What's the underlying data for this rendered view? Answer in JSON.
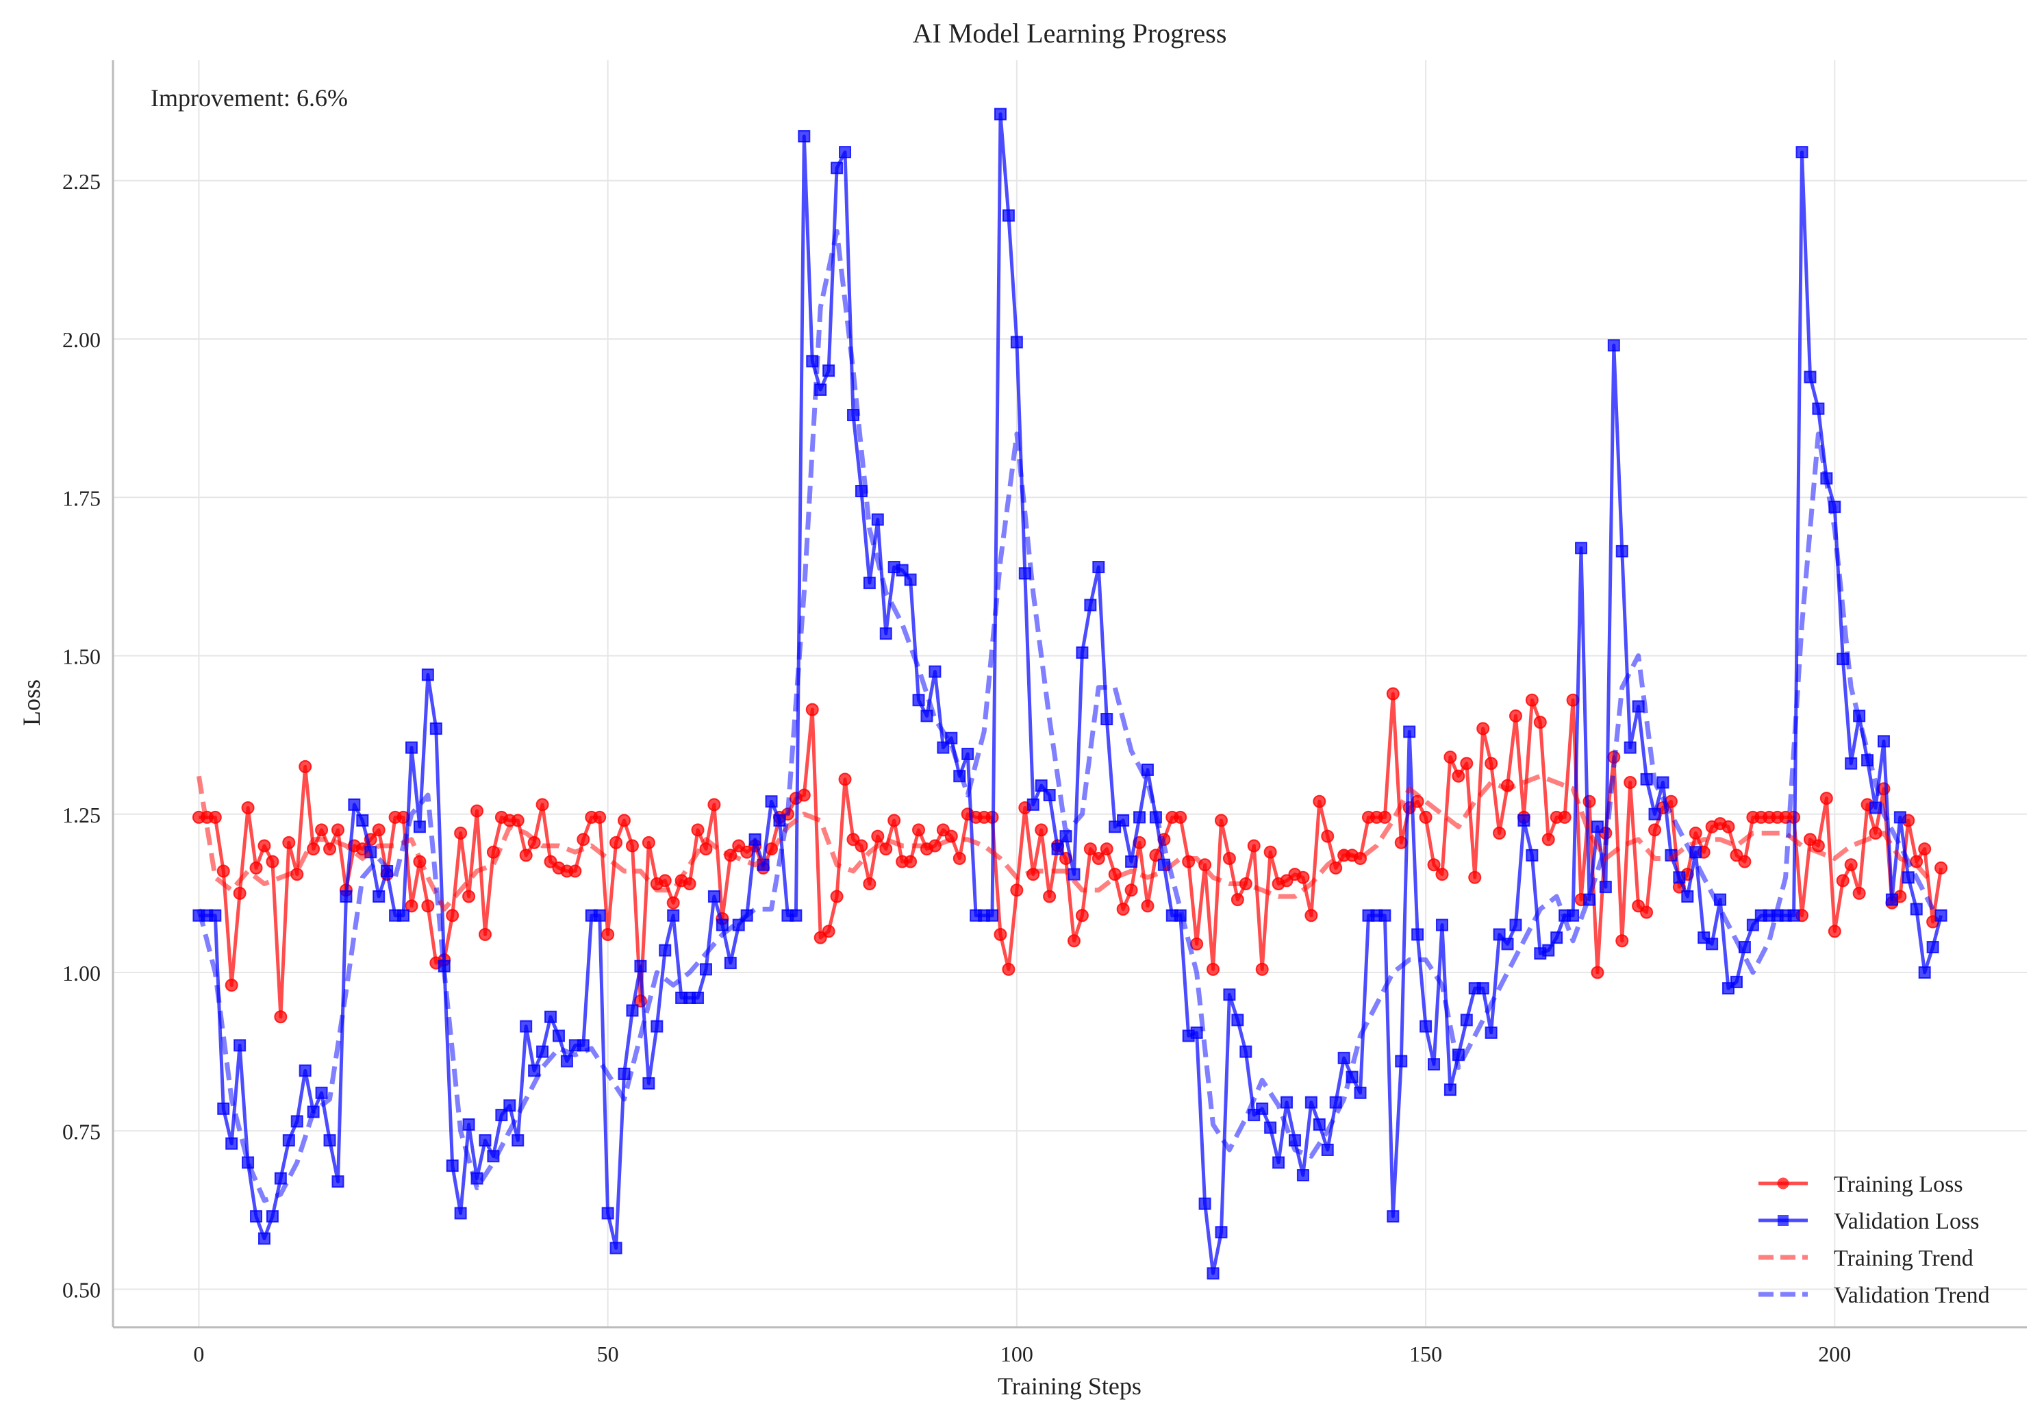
{
  "chart_data": {
    "type": "line",
    "title": "AI Model Learning Progress",
    "xlabel": "Training Steps",
    "ylabel": "Loss",
    "annotation": "Improvement: 6.6%",
    "xlim": [
      -10.5,
      223.5
    ],
    "ylim": [
      0.44,
      2.44
    ],
    "x_ticks": [
      0,
      50,
      100,
      150,
      200
    ],
    "y_ticks": [
      0.5,
      0.75,
      1.0,
      1.25,
      1.5,
      1.75,
      2.0,
      2.25
    ],
    "y_tick_labels": [
      "0.50",
      "0.75",
      "1.00",
      "1.25",
      "1.50",
      "1.75",
      "2.00",
      "2.25"
    ],
    "grid": true,
    "legend_placement": "lower-right",
    "series": [
      {
        "name": "Training Loss",
        "color": "#ff0000",
        "marker": "circle",
        "style": "solid",
        "values": [
          1.245,
          1.245,
          1.245,
          1.16,
          0.98,
          1.125,
          1.26,
          1.165,
          1.2,
          1.175,
          0.93,
          1.205,
          1.155,
          1.325,
          1.195,
          1.225,
          1.195,
          1.225,
          1.13,
          1.2,
          1.195,
          1.21,
          1.225,
          1.155,
          1.245,
          1.245,
          1.105,
          1.175,
          1.105,
          1.015,
          1.02,
          1.09,
          1.22,
          1.12,
          1.255,
          1.06,
          1.19,
          1.245,
          1.24,
          1.24,
          1.185,
          1.205,
          1.265,
          1.175,
          1.165,
          1.16,
          1.16,
          1.21,
          1.245,
          1.245,
          1.06,
          1.205,
          1.24,
          1.2,
          0.955,
          1.205,
          1.14,
          1.145,
          1.11,
          1.145,
          1.14,
          1.225,
          1.195,
          1.265,
          1.085,
          1.185,
          1.2,
          1.19,
          1.2,
          1.165,
          1.195,
          1.245,
          1.25,
          1.275,
          1.28,
          1.415,
          1.055,
          1.065,
          1.12,
          1.305,
          1.21,
          1.2,
          1.14,
          1.215,
          1.195,
          1.24,
          1.175,
          1.175,
          1.225,
          1.195,
          1.2,
          1.225,
          1.215,
          1.18,
          1.25,
          1.245,
          1.245,
          1.245,
          1.06,
          1.005,
          1.13,
          1.26,
          1.155,
          1.225,
          1.12,
          1.2,
          1.18,
          1.05,
          1.09,
          1.195,
          1.18,
          1.195,
          1.155,
          1.1,
          1.13,
          1.205,
          1.105,
          1.185,
          1.21,
          1.245,
          1.245,
          1.175,
          1.045,
          1.17,
          1.005,
          1.24,
          1.18,
          1.115,
          1.14,
          1.2,
          1.005,
          1.19,
          1.14,
          1.145,
          1.155,
          1.15,
          1.09,
          1.27,
          1.215,
          1.165,
          1.185,
          1.185,
          1.18,
          1.245,
          1.245,
          1.245,
          1.44,
          1.205,
          1.26,
          1.27,
          1.245,
          1.17,
          1.155,
          1.34,
          1.31,
          1.33,
          1.15,
          1.385,
          1.33,
          1.22,
          1.295,
          1.405,
          1.245,
          1.43,
          1.395,
          1.21,
          1.245,
          1.245,
          1.43,
          1.115,
          1.27,
          1.0,
          1.22,
          1.34,
          1.05,
          1.3,
          1.105,
          1.095,
          1.225,
          1.26,
          1.27,
          1.135,
          1.155,
          1.22,
          1.19,
          1.23,
          1.235,
          1.23,
          1.185,
          1.175,
          1.245,
          1.245,
          1.245,
          1.245,
          1.245,
          1.245,
          1.09,
          1.21,
          1.2,
          1.275,
          1.065,
          1.145,
          1.17,
          1.125,
          1.265,
          1.22,
          1.29,
          1.11,
          1.12,
          1.24,
          1.175,
          1.195,
          1.08,
          1.165
        ]
      },
      {
        "name": "Validation Loss",
        "color": "#0000ff",
        "marker": "square",
        "style": "solid",
        "values": [
          1.09,
          1.09,
          1.09,
          0.785,
          0.73,
          0.885,
          0.7,
          0.615,
          0.58,
          0.615,
          0.675,
          0.735,
          0.765,
          0.845,
          0.78,
          0.81,
          0.735,
          0.67,
          1.12,
          1.265,
          1.24,
          1.19,
          1.12,
          1.16,
          1.09,
          1.09,
          1.355,
          1.23,
          1.47,
          1.385,
          1.01,
          0.695,
          0.62,
          0.76,
          0.675,
          0.735,
          0.71,
          0.775,
          0.79,
          0.735,
          0.915,
          0.845,
          0.875,
          0.93,
          0.9,
          0.86,
          0.885,
          0.885,
          1.09,
          1.09,
          0.62,
          0.565,
          0.84,
          0.94,
          1.01,
          0.825,
          0.915,
          1.035,
          1.09,
          0.96,
          0.96,
          0.96,
          1.005,
          1.12,
          1.075,
          1.015,
          1.075,
          1.09,
          1.21,
          1.17,
          1.27,
          1.24,
          1.09,
          1.09,
          2.32,
          1.965,
          1.92,
          1.95,
          2.27,
          2.295,
          1.88,
          1.76,
          1.615,
          1.715,
          1.535,
          1.64,
          1.635,
          1.62,
          1.43,
          1.405,
          1.475,
          1.355,
          1.37,
          1.31,
          1.345,
          1.09,
          1.09,
          1.09,
          2.355,
          2.195,
          1.995,
          1.63,
          1.265,
          1.295,
          1.28,
          1.195,
          1.215,
          1.155,
          1.505,
          1.58,
          1.64,
          1.4,
          1.23,
          1.24,
          1.175,
          1.245,
          1.32,
          1.245,
          1.17,
          1.09,
          1.09,
          0.9,
          0.905,
          0.635,
          0.525,
          0.59,
          0.965,
          0.925,
          0.875,
          0.775,
          0.785,
          0.755,
          0.7,
          0.795,
          0.735,
          0.68,
          0.795,
          0.76,
          0.72,
          0.795,
          0.865,
          0.835,
          0.81,
          1.09,
          1.09,
          1.09,
          0.615,
          0.86,
          1.38,
          1.06,
          0.915,
          0.855,
          1.075,
          0.815,
          0.87,
          0.925,
          0.975,
          0.975,
          0.905,
          1.06,
          1.045,
          1.075,
          1.24,
          1.185,
          1.03,
          1.035,
          1.055,
          1.09,
          1.09,
          1.67,
          1.115,
          1.23,
          1.135,
          1.99,
          1.665,
          1.355,
          1.42,
          1.305,
          1.25,
          1.3,
          1.185,
          1.15,
          1.12,
          1.19,
          1.055,
          1.045,
          1.115,
          0.975,
          0.985,
          1.04,
          1.075,
          1.09,
          1.09,
          1.09,
          1.09,
          1.09,
          2.295,
          1.94,
          1.89,
          1.78,
          1.735,
          1.495,
          1.33,
          1.405,
          1.335,
          1.26,
          1.365,
          1.115,
          1.245,
          1.15,
          1.1,
          1.0,
          1.04,
          1.09
        ]
      },
      {
        "name": "Training Trend",
        "color": "#ff0000",
        "style": "dashed",
        "x": [
          0,
          2,
          4,
          6,
          8,
          10,
          12,
          14,
          16,
          18,
          20,
          22,
          24,
          26,
          28,
          30,
          32,
          34,
          36,
          38,
          40,
          42,
          44,
          46,
          48,
          50,
          52,
          54,
          56,
          58,
          60,
          62,
          64,
          66,
          68,
          70,
          72,
          74,
          76,
          78,
          80,
          82,
          84,
          86,
          88,
          90,
          92,
          94,
          96,
          98,
          100,
          102,
          104,
          106,
          108,
          110,
          112,
          114,
          116,
          118,
          120,
          122,
          124,
          126,
          128,
          130,
          132,
          134,
          136,
          138,
          140,
          142,
          144,
          146,
          148,
          150,
          152,
          154,
          156,
          158,
          160,
          162,
          164,
          166,
          168,
          170,
          172,
          174,
          176,
          178,
          180,
          182,
          184,
          186,
          188,
          190,
          192,
          194,
          196,
          198,
          200,
          202,
          204,
          206,
          208,
          210,
          212
        ],
        "values": [
          1.31,
          1.15,
          1.13,
          1.16,
          1.14,
          1.15,
          1.16,
          1.21,
          1.21,
          1.2,
          1.18,
          1.2,
          1.2,
          1.21,
          1.15,
          1.1,
          1.13,
          1.16,
          1.17,
          1.23,
          1.22,
          1.2,
          1.2,
          1.19,
          1.2,
          1.18,
          1.16,
          1.16,
          1.13,
          1.13,
          1.17,
          1.21,
          1.19,
          1.18,
          1.17,
          1.19,
          1.23,
          1.25,
          1.24,
          1.17,
          1.16,
          1.19,
          1.21,
          1.2,
          1.2,
          1.2,
          1.21,
          1.21,
          1.2,
          1.18,
          1.15,
          1.16,
          1.16,
          1.16,
          1.13,
          1.13,
          1.15,
          1.16,
          1.15,
          1.16,
          1.18,
          1.18,
          1.15,
          1.14,
          1.14,
          1.13,
          1.12,
          1.12,
          1.14,
          1.17,
          1.19,
          1.18,
          1.2,
          1.24,
          1.29,
          1.27,
          1.25,
          1.23,
          1.27,
          1.3,
          1.29,
          1.3,
          1.31,
          1.3,
          1.29,
          1.22,
          1.18,
          1.2,
          1.21,
          1.18,
          1.18,
          1.2,
          1.21,
          1.21,
          1.2,
          1.22,
          1.22,
          1.22,
          1.2,
          1.19,
          1.18,
          1.2,
          1.21,
          1.22,
          1.18,
          1.17,
          1.14
        ]
      },
      {
        "name": "Validation Trend",
        "color": "#0000ff",
        "style": "dashed",
        "x": [
          0,
          2,
          4,
          6,
          8,
          10,
          12,
          14,
          16,
          18,
          20,
          22,
          24,
          26,
          28,
          30,
          32,
          34,
          36,
          38,
          40,
          42,
          44,
          46,
          48,
          50,
          52,
          54,
          56,
          58,
          60,
          62,
          64,
          66,
          68,
          70,
          72,
          74,
          76,
          78,
          80,
          82,
          84,
          86,
          88,
          90,
          92,
          94,
          96,
          98,
          100,
          102,
          104,
          106,
          108,
          110,
          112,
          114,
          116,
          118,
          120,
          122,
          124,
          126,
          128,
          130,
          132,
          134,
          136,
          138,
          140,
          142,
          144,
          146,
          148,
          150,
          152,
          154,
          156,
          158,
          160,
          162,
          164,
          166,
          168,
          170,
          172,
          174,
          176,
          178,
          180,
          182,
          184,
          186,
          188,
          190,
          192,
          194,
          196,
          198,
          200,
          202,
          204,
          206,
          208,
          210,
          212
        ],
        "values": [
          1.1,
          1.0,
          0.8,
          0.7,
          0.64,
          0.65,
          0.7,
          0.78,
          0.8,
          0.97,
          1.15,
          1.18,
          1.15,
          1.25,
          1.28,
          1.0,
          0.75,
          0.66,
          0.7,
          0.75,
          0.8,
          0.85,
          0.88,
          0.87,
          0.88,
          0.84,
          0.8,
          0.9,
          1.0,
          0.98,
          1.0,
          1.03,
          1.06,
          1.08,
          1.1,
          1.1,
          1.25,
          1.6,
          2.05,
          2.17,
          1.95,
          1.7,
          1.6,
          1.55,
          1.48,
          1.4,
          1.36,
          1.28,
          1.38,
          1.65,
          1.85,
          1.6,
          1.4,
          1.22,
          1.25,
          1.45,
          1.45,
          1.35,
          1.3,
          1.2,
          1.1,
          1.0,
          0.76,
          0.72,
          0.77,
          0.83,
          0.79,
          0.72,
          0.71,
          0.75,
          0.8,
          0.9,
          0.95,
          1.0,
          1.02,
          1.02,
          0.98,
          0.85,
          0.9,
          0.95,
          1.0,
          1.05,
          1.1,
          1.12,
          1.05,
          1.12,
          1.2,
          1.45,
          1.5,
          1.3,
          1.25,
          1.2,
          1.15,
          1.1,
          1.05,
          1.0,
          1.05,
          1.15,
          1.55,
          1.85,
          1.7,
          1.45,
          1.35,
          1.25,
          1.2,
          1.15,
          1.1
        ]
      }
    ]
  }
}
